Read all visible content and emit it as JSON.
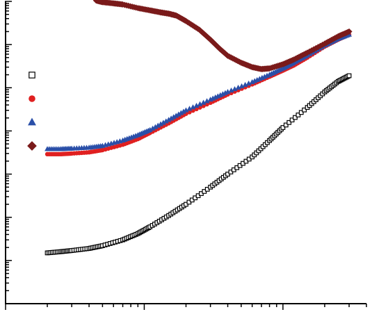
{
  "chart_data": {
    "type": "scatter",
    "title": "",
    "xlabel": "",
    "ylabel": "",
    "x_scale": "log",
    "y_scale": "log",
    "xlim": [
      0.1,
      40
    ],
    "ylim": [
      0.0001,
      1000
    ],
    "grid": false,
    "legend": {
      "placement": "left",
      "labels_printed": false
    },
    "series": [
      {
        "marker": "open-square",
        "color": "#000000",
        "points": [
          [
            0.2,
            0.0015
          ],
          [
            0.25,
            0.0016
          ],
          [
            0.3,
            0.0017
          ],
          [
            0.4,
            0.0019
          ],
          [
            0.5,
            0.0022
          ],
          [
            0.7,
            0.003
          ],
          [
            0.9,
            0.0042
          ],
          [
            1.1,
            0.006
          ],
          [
            1.5,
            0.011
          ],
          [
            2,
            0.02
          ],
          [
            3,
            0.05
          ],
          [
            4,
            0.1
          ],
          [
            6,
            0.25
          ],
          [
            8,
            0.6
          ],
          [
            10,
            1.2
          ],
          [
            15,
            3.5
          ],
          [
            20,
            8
          ],
          [
            25,
            14
          ],
          [
            30,
            19
          ]
        ]
      },
      {
        "marker": "filled-circle",
        "color": "#e02020",
        "points": [
          [
            0.2,
            0.29
          ],
          [
            0.25,
            0.29
          ],
          [
            0.3,
            0.3
          ],
          [
            0.4,
            0.32
          ],
          [
            0.5,
            0.36
          ],
          [
            0.7,
            0.48
          ],
          [
            0.9,
            0.65
          ],
          [
            1.1,
            0.9
          ],
          [
            1.5,
            1.5
          ],
          [
            2,
            2.5
          ],
          [
            3,
            4.5
          ],
          [
            4,
            7
          ],
          [
            6,
            12
          ],
          [
            8,
            18
          ],
          [
            10,
            25
          ],
          [
            12,
            33
          ],
          [
            15,
            50
          ],
          [
            20,
            90
          ],
          [
            25,
            130
          ],
          [
            30,
            170
          ]
        ]
      },
      {
        "marker": "filled-triangle",
        "color": "#2a4fa8",
        "points": [
          [
            0.2,
            0.38
          ],
          [
            0.25,
            0.38
          ],
          [
            0.3,
            0.39
          ],
          [
            0.4,
            0.41
          ],
          [
            0.5,
            0.45
          ],
          [
            0.7,
            0.6
          ],
          [
            0.9,
            0.8
          ],
          [
            1.1,
            1.05
          ],
          [
            1.5,
            1.8
          ],
          [
            2,
            3
          ],
          [
            3,
            5.3
          ],
          [
            4,
            8
          ],
          [
            6,
            13.5
          ],
          [
            8,
            20
          ],
          [
            10,
            28
          ],
          [
            12,
            38
          ],
          [
            15,
            56
          ],
          [
            20,
            95
          ],
          [
            25,
            135
          ],
          [
            30,
            170
          ]
        ]
      },
      {
        "marker": "filled-diamond",
        "color": "#7a1a1a",
        "points": [
          [
            0.45,
            1050
          ],
          [
            0.5,
            960
          ],
          [
            0.6,
            900
          ],
          [
            0.7,
            850
          ],
          [
            0.9,
            700
          ],
          [
            1.1,
            620
          ],
          [
            1.3,
            560
          ],
          [
            1.5,
            520
          ],
          [
            1.7,
            470
          ],
          [
            2,
            350
          ],
          [
            2.5,
            220
          ],
          [
            3,
            130
          ],
          [
            3.5,
            80
          ],
          [
            4,
            55
          ],
          [
            5,
            38
          ],
          [
            6,
            30
          ],
          [
            7,
            27
          ],
          [
            8,
            28
          ],
          [
            10,
            35
          ],
          [
            12,
            45
          ],
          [
            15,
            65
          ],
          [
            20,
            105
          ],
          [
            25,
            155
          ],
          [
            30,
            200
          ]
        ]
      }
    ]
  }
}
